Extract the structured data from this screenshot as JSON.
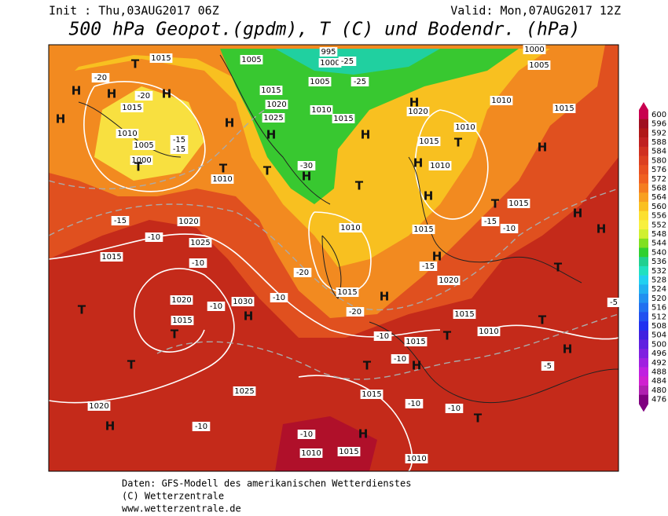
{
  "header": {
    "init": "Init : Thu,03AUG2017 06Z",
    "valid": "Valid: Mon,07AUG2017 12Z",
    "title": "500 hPa Geopot.(gpdm), T (C) und Bodendr. (hPa)"
  },
  "legend": {
    "levels": [
      600,
      596,
      592,
      588,
      584,
      580,
      576,
      572,
      568,
      564,
      560,
      556,
      552,
      548,
      544,
      540,
      536,
      532,
      528,
      524,
      520,
      516,
      512,
      508,
      504,
      500,
      496,
      492,
      488,
      484,
      480,
      476
    ],
    "colors": [
      "#c8004f",
      "#a01020",
      "#b01818",
      "#c02020",
      "#d03020",
      "#dc4020",
      "#e85020",
      "#f06020",
      "#f57d20",
      "#f8a020",
      "#fac020",
      "#fce030",
      "#f8f040",
      "#d0f030",
      "#80e020",
      "#30d030",
      "#20d090",
      "#20e0c0",
      "#20d0f0",
      "#20b0f0",
      "#2090f0",
      "#2070f0",
      "#2050f0",
      "#2030f0",
      "#4020e0",
      "#6020e0",
      "#8020e0",
      "#a020e0",
      "#c020e0",
      "#d020d0",
      "#b020b0",
      "#800080"
    ]
  },
  "map_labels": [
    "T",
    "1015",
    "H",
    "H",
    "H",
    "1015",
    "H",
    "1010",
    "1005",
    "1000",
    "T",
    "H",
    "-20",
    "-20",
    "-15",
    "-15",
    "1010",
    "T",
    "1005",
    "1005",
    "995",
    "1000",
    "1015",
    "1020",
    "1025",
    "H",
    "1010",
    "1015",
    "-25",
    "-25",
    "-30",
    "H",
    "T",
    "H",
    "1020",
    "H",
    "1000",
    "1005",
    "1010",
    "1015",
    "H",
    "T",
    "1010",
    "1015",
    "1010",
    "H",
    "T",
    "H",
    "T",
    "1015",
    "H",
    "H",
    "-20",
    "1010",
    "1015",
    "H",
    "1020",
    "1015",
    "H",
    "-20",
    "1020",
    "-15",
    "1015",
    "-10",
    "1025",
    "-10",
    "1020",
    "1030",
    "H",
    "-10",
    "-10",
    "T",
    "1015",
    "T",
    "T",
    "1025",
    "1020",
    "H",
    "-10",
    "1015",
    "-10",
    "T",
    "1015",
    "1010",
    "-5",
    "T",
    "H",
    "-5",
    "T",
    "-10",
    "T",
    "H",
    "-10",
    "1015",
    "-10",
    "H",
    "-10",
    "1010",
    "1015",
    "1010",
    "-15",
    "-15",
    "-10",
    "T"
  ],
  "footer": [
    "Daten: GFS-Modell des amerikanischen Wetterdienstes",
    "(C) Wetterzentrale",
    "www.wetterzentrale.de"
  ]
}
